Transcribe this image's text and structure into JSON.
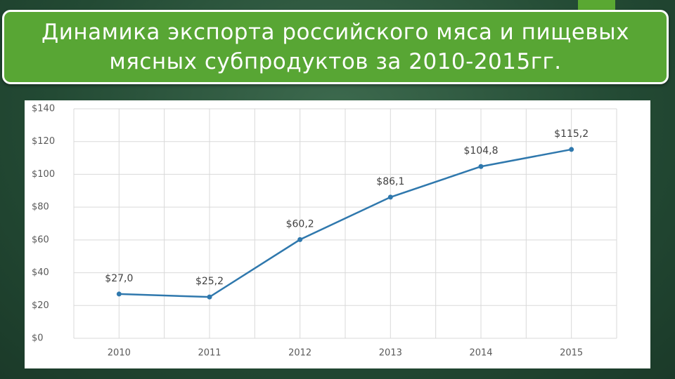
{
  "chart_data": {
    "type": "line",
    "title": "Динамика экспорта российского мяса и пищевых мясных субпродуктов за 2010-2015гг.",
    "categories": [
      "2010",
      "2011",
      "2012",
      "2013",
      "2014",
      "2015"
    ],
    "values": [
      27.0,
      25.2,
      60.2,
      86.1,
      104.8,
      115.2
    ],
    "value_labels": [
      "$27,0",
      "$25,2",
      "$60,2",
      "$86,1",
      "$104,8",
      "$115,2"
    ],
    "color": "#2f78ad",
    "ylim": [
      0,
      140
    ],
    "yticks": [
      {
        "value": 0,
        "label": "$0"
      },
      {
        "value": 20,
        "label": "$20"
      },
      {
        "value": 40,
        "label": "$40"
      },
      {
        "value": 60,
        "label": "$60"
      },
      {
        "value": 80,
        "label": "$80"
      },
      {
        "value": 100,
        "label": "$100"
      },
      {
        "value": 120,
        "label": "$120"
      },
      {
        "value": 140,
        "label": "$140"
      }
    ],
    "grid": true
  }
}
